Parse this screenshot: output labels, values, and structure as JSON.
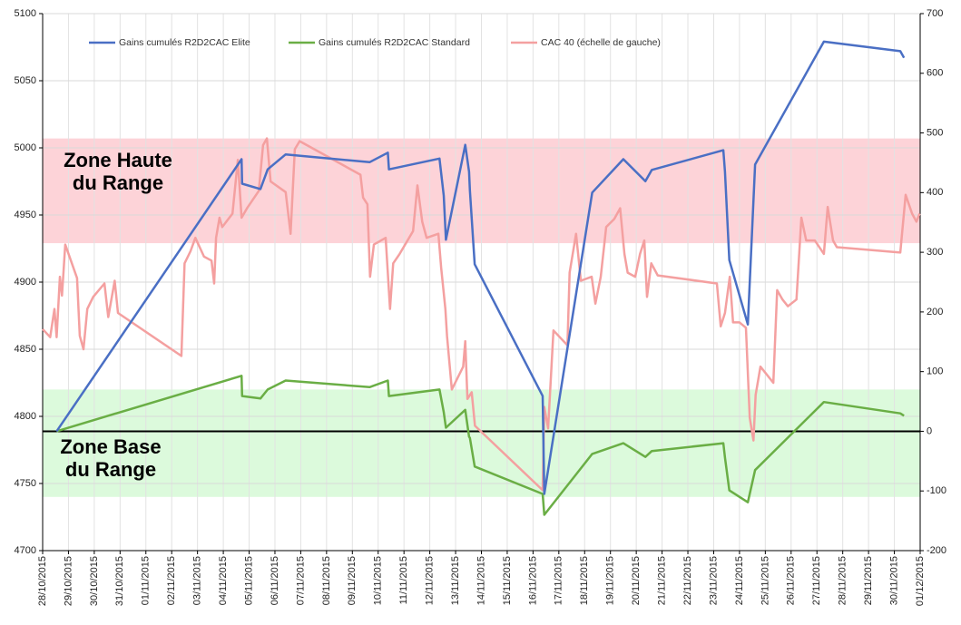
{
  "chart_data": {
    "type": "line",
    "xlim": [
      "2015-10-28",
      "2015-12-01"
    ],
    "xticks": [
      {
        "value": "2015-10-28",
        "label": "28/10/2015"
      },
      {
        "value": "2015-10-29",
        "label": "29/10/2015"
      },
      {
        "value": "2015-10-30",
        "label": "30/10/2015"
      },
      {
        "value": "2015-10-31",
        "label": "31/10/2015"
      },
      {
        "value": "2015-11-01",
        "label": "01/11/2015"
      },
      {
        "value": "2015-11-02",
        "label": "02/11/2015"
      },
      {
        "value": "2015-11-03",
        "label": "03/11/2015"
      },
      {
        "value": "2015-11-04",
        "label": "04/11/2015"
      },
      {
        "value": "2015-11-05",
        "label": "05/11/2015"
      },
      {
        "value": "2015-11-06",
        "label": "06/11/2015"
      },
      {
        "value": "2015-11-07",
        "label": "07/11/2015"
      },
      {
        "value": "2015-11-08",
        "label": "08/11/2015"
      },
      {
        "value": "2015-11-09",
        "label": "09/11/2015"
      },
      {
        "value": "2015-11-10",
        "label": "10/11/2015"
      },
      {
        "value": "2015-11-11",
        "label": "11/11/2015"
      },
      {
        "value": "2015-11-12",
        "label": "12/11/2015"
      },
      {
        "value": "2015-11-13",
        "label": "13/11/2015"
      },
      {
        "value": "2015-11-14",
        "label": "14/11/2015"
      },
      {
        "value": "2015-11-15",
        "label": "15/11/2015"
      },
      {
        "value": "2015-11-16",
        "label": "16/11/2015"
      },
      {
        "value": "2015-11-17",
        "label": "17/11/2015"
      },
      {
        "value": "2015-11-18",
        "label": "18/11/2015"
      },
      {
        "value": "2015-11-19",
        "label": "19/11/2015"
      },
      {
        "value": "2015-11-20",
        "label": "20/11/2015"
      },
      {
        "value": "2015-11-21",
        "label": "21/11/2015"
      },
      {
        "value": "2015-11-22",
        "label": "22/11/2015"
      },
      {
        "value": "2015-11-23",
        "label": "23/11/2015"
      },
      {
        "value": "2015-11-24",
        "label": "24/11/2015"
      },
      {
        "value": "2015-11-25",
        "label": "25/11/2015"
      },
      {
        "value": "2015-11-26",
        "label": "26/11/2015"
      },
      {
        "value": "2015-11-27",
        "label": "27/11/2015"
      },
      {
        "value": "2015-11-28",
        "label": "28/11/2015"
      },
      {
        "value": "2015-11-29",
        "label": "29/11/2015"
      },
      {
        "value": "2015-11-30",
        "label": "30/11/2015"
      },
      {
        "value": "2015-12-01",
        "label": "01/12/2015"
      }
    ],
    "ylim": [
      4700,
      5100
    ],
    "yticks": [
      4700,
      4750,
      4800,
      4850,
      4900,
      4950,
      5000,
      5050,
      5100
    ],
    "y2lim": [
      -200,
      700
    ],
    "y2ticks": [
      -200,
      -100,
      0,
      100,
      200,
      300,
      400,
      500,
      600,
      700
    ],
    "grid": true,
    "legend": "top",
    "bands": [
      {
        "label_lines": [
          "Zone Haute",
          "du Range"
        ],
        "from": 4929,
        "to": 5007,
        "color": "#fdd3d8"
      },
      {
        "label_lines": [
          "Zone Base",
          "du Range"
        ],
        "from": 4740,
        "to": 4820,
        "color": "#dcfadc"
      }
    ],
    "reference_lines": [
      {
        "axis": "y2",
        "value": 0,
        "color": "#000000"
      }
    ],
    "series": [
      {
        "name": "Gains cumulés R2D2CAC Elite",
        "color": "#4a6fc4",
        "axis": "y2",
        "x": [
          "2015-10-28T13:00",
          "2015-11-04T17:00",
          "2015-11-04T17:30",
          "2015-11-05T10:30",
          "2015-11-05T17:15",
          "2015-11-06T10:00",
          "2015-11-09T16:00",
          "2015-11-10T09:00",
          "2015-11-10T10:00",
          "2015-11-12T09:00",
          "2015-11-12T13:00",
          "2015-11-12T15:00",
          "2015-11-13T09:00",
          "2015-11-13T12:30",
          "2015-11-13T13:15",
          "2015-11-13T17:45",
          "2015-11-16T09:00",
          "2015-11-16T10:30",
          "2015-11-18T07:00",
          "2015-11-19T12:00",
          "2015-11-20T08:30",
          "2015-11-20T14:30",
          "2015-11-23T09:00",
          "2015-11-23T10:30",
          "2015-11-23T14:30",
          "2015-11-24T07:45",
          "2015-11-24T14:30",
          "2015-11-27T06:30",
          "2015-11-30T05:30",
          "2015-11-30T09:00"
        ],
        "values": [
          0,
          456,
          415,
          406,
          439,
          464,
          451,
          467,
          439,
          457,
          395,
          321,
          480,
          435,
          404,
          280,
          59,
          -105,
          400,
          456,
          419,
          438,
          471,
          435,
          287,
          179,
          447,
          653,
          637,
          626
        ]
      },
      {
        "name": "Gains cumulés R2D2CAC Standard",
        "color": "#6aae45",
        "axis": "y2",
        "x": [
          "2015-10-28T13:00",
          "2015-11-04T17:00",
          "2015-11-04T17:30",
          "2015-11-05T10:30",
          "2015-11-05T17:15",
          "2015-11-06T10:00",
          "2015-11-09T16:00",
          "2015-11-10T09:00",
          "2015-11-10T10:00",
          "2015-11-12T09:00",
          "2015-11-12T13:00",
          "2015-11-12T15:00",
          "2015-11-13T09:00",
          "2015-11-13T12:30",
          "2015-11-13T13:15",
          "2015-11-13T17:45",
          "2015-11-16T09:00",
          "2015-11-16T10:30",
          "2015-11-18T07:00",
          "2015-11-19T12:00",
          "2015-11-20T08:30",
          "2015-11-20T14:30",
          "2015-11-23T09:00",
          "2015-11-23T10:30",
          "2015-11-23T14:30",
          "2015-11-24T07:45",
          "2015-11-24T14:30",
          "2015-11-27T06:30",
          "2015-11-30T05:30",
          "2015-11-30T09:00"
        ],
        "values": [
          0,
          93,
          59,
          55,
          70,
          85,
          74,
          85,
          59,
          70,
          32,
          6,
          36,
          -9,
          -11,
          -59,
          -105,
          -140,
          -38,
          -20,
          -43,
          -33,
          -20,
          -44,
          -99,
          -119,
          -65,
          49,
          30,
          26
        ]
      },
      {
        "name": "CAC 40 (échelle de gauche)",
        "color": "#f4a0a0",
        "axis": "y",
        "x": [
          "2015-10-28T00:00",
          "2015-10-28T07:00",
          "2015-10-28T11:00",
          "2015-10-28T13:00",
          "2015-10-28T16:00",
          "2015-10-28T18:00",
          "2015-10-28T21:00",
          "2015-10-29T08:00",
          "2015-10-29T10:30",
          "2015-10-29T14:00",
          "2015-10-29T17:30",
          "2015-10-29T23:00",
          "2015-10-30T09:30",
          "2015-10-30T13:00",
          "2015-10-30T19:00",
          "2015-10-30T22:00",
          "2015-11-02T09:00",
          "2015-11-02T12:00",
          "2015-11-02T17:30",
          "2015-11-02T22:00",
          "2015-11-03T06:00",
          "2015-11-03T13:00",
          "2015-11-03T15:30",
          "2015-11-03T17:15",
          "2015-11-03T20:30",
          "2015-11-03T23:00",
          "2015-11-04T08:30",
          "2015-11-04T13:30",
          "2015-11-04T17:00",
          "2015-11-04T22:00",
          "2015-11-05T09:00",
          "2015-11-05T13:00",
          "2015-11-05T16:30",
          "2015-11-05T20:00",
          "2015-11-06T10:00",
          "2015-11-06T14:30",
          "2015-11-06T18:30",
          "2015-11-06T23:00",
          "2015-11-09T07:30",
          "2015-11-09T10:00",
          "2015-11-09T14:00",
          "2015-11-09T16:30",
          "2015-11-09T20:00",
          "2015-11-10T07:00",
          "2015-11-10T11:00",
          "2015-11-10T14:00",
          "2015-11-10T20:00",
          "2015-11-11T08:30",
          "2015-11-11T12:30",
          "2015-11-11T17:00",
          "2015-11-11T21:00",
          "2015-11-12T08:00",
          "2015-11-12T10:30",
          "2015-11-12T14:30",
          "2015-11-12T16:00",
          "2015-11-12T20:30",
          "2015-11-13T07:00",
          "2015-11-13T09:00",
          "2015-11-13T11:00",
          "2015-11-13T15:00",
          "2015-11-13T18:00",
          "2015-11-16T09:00",
          "2015-11-16T10:30",
          "2015-11-16T14:00",
          "2015-11-16T19:00",
          "2015-11-17T08:00",
          "2015-11-17T10:00",
          "2015-11-17T16:00",
          "2015-11-17T20:30",
          "2015-11-18T06:30",
          "2015-11-18T10:00",
          "2015-11-18T15:00",
          "2015-11-18T20:00",
          "2015-11-19T03:30",
          "2015-11-19T09:00",
          "2015-11-19T13:00",
          "2015-11-19T16:00",
          "2015-11-19T23:00",
          "2015-11-20T03:30",
          "2015-11-20T07:30",
          "2015-11-20T10:00",
          "2015-11-20T14:00",
          "2015-11-20T20:00",
          "2015-11-23T03:00",
          "2015-11-23T06:30",
          "2015-11-23T10:30",
          "2015-11-23T15:00",
          "2015-11-23T18:00",
          "2015-11-24T00:00",
          "2015-11-24T06:00",
          "2015-11-24T09:30",
          "2015-11-24T13:00",
          "2015-11-24T15:00",
          "2015-11-24T19:30",
          "2015-11-25T07:30",
          "2015-11-25T11:00",
          "2015-11-25T16:00",
          "2015-11-25T21:00",
          "2015-11-26T05:00",
          "2015-11-26T09:30",
          "2015-11-26T14:00",
          "2015-11-26T22:00",
          "2015-11-27T06:30",
          "2015-11-27T10:00",
          "2015-11-27T15:00",
          "2015-11-27T18:30",
          "2015-11-30T05:30",
          "2015-11-30T10:30",
          "2015-11-30T16:30",
          "2015-11-30T20:30",
          "2015-11-30T23:30"
        ],
        "values": [
          4865,
          4859,
          4880,
          4859,
          4904,
          4890,
          4928,
          4903,
          4860,
          4850,
          4880,
          4889,
          4899,
          4874,
          4901,
          4877,
          4845,
          4914,
          4923,
          4933,
          4919,
          4916,
          4899,
          4933,
          4948,
          4941,
          4951,
          4991,
          4948,
          4955,
          4968,
          5002,
          5007,
          4975,
          4967,
          4936,
          4999,
          5005,
          4980,
          4963,
          4958,
          4904,
          4928,
          4933,
          4880,
          4914,
          4921,
          4938,
          4972,
          4945,
          4933,
          4936,
          4911,
          4880,
          4860,
          4820,
          4837,
          4856,
          4813,
          4818,
          4793,
          4745,
          4807,
          4791,
          4864,
          4853,
          4907,
          4936,
          4901,
          4904,
          4884,
          4904,
          4941,
          4947,
          4955,
          4921,
          4907,
          4904,
          4921,
          4931,
          4889,
          4914,
          4905,
          4899,
          4867,
          4877,
          4904,
          4870,
          4870,
          4866,
          4799,
          4782,
          4816,
          4837,
          4825,
          4894,
          4887,
          4882,
          4887,
          4948,
          4931,
          4931,
          4921,
          4956,
          4931,
          4926,
          4922,
          4965,
          4951,
          4945,
          4951
        ]
      }
    ]
  }
}
